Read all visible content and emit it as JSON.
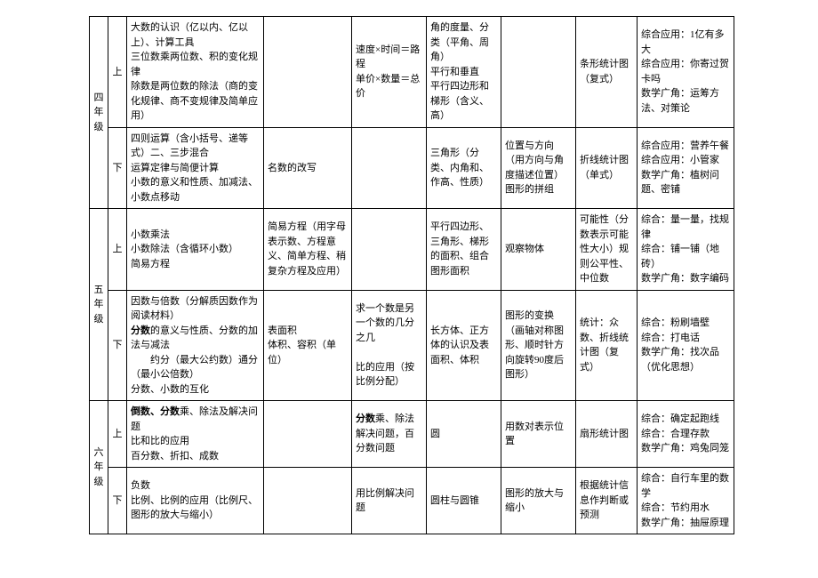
{
  "rows": [
    {
      "grade": "四年级",
      "gradeRowspan": 2,
      "term": "上",
      "c3": "大数的认识（亿以内、亿以上）、计算工具\n三位数乘两位数、积的变化规律\n除数是两位数的除法（商的变化规律、商不变规律及简单应用）",
      "c4": "",
      "c5": "速度×时间＝路程\n单价×数量＝总价",
      "c6": "角的度量、分类（平角、周角）\n平行和垂直\n平行四边形和梯形（含义、高）",
      "c7": "",
      "c8": "条形统计图（复式）",
      "c9": "综合应用：1亿有多大\n综合应用：你寄过贺卡吗\n数学广角：运筹方法、对策论"
    },
    {
      "term": "下",
      "c3": "四则运算（含小括号、递等式）二、三步混合\n运算定律与简便计算\n小数的意义和性质、加减法、小数点移动",
      "c4": "名数的改写",
      "c5": "",
      "c6": "三角形（分类、内角和、作高、性质）",
      "c7": "位置与方向（用方向与角度描述位置）\n图形的拼组",
      "c8": "折线统计图（单式）",
      "c9": "综合应用：营养午餐\n综合应用：小管家\n数学广角：植树问题、密铺"
    },
    {
      "grade": "五年级",
      "gradeRowspan": 2,
      "term": "上",
      "c3": "小数乘法\n小数除法（含循环小数）\n简易方程",
      "c4": "简易方程（用字母表示数、方程意义、简单方程、稍复杂方程及应用）",
      "c5": "",
      "c6": "平行四边形、三角形、梯形的面积、组合图形面积",
      "c7": "观察物体",
      "c8": "可能性（分数表示可能性大小）规则公平性、中位数",
      "c9": "综合：量一量，找规律\n综合：铺一铺（地砖）\n数学广角：数字编码"
    },
    {
      "term": "下",
      "c3": "因数与倍数（分解质因数作为阅读材料）\n<b>分数</b>的意义与性质、分数的加法与减法\n　　约分（最大公约数）通分（最小公倍数）\n分数、小数的互化",
      "c4": "表面积\n体积、容积（单位）",
      "c5": "求一个数是另一个数的几分之几\n\n比的应用（按比例分配）",
      "c6": "长方体、正方体的认识及表面积、体积",
      "c7": "图形的变换（画轴对称图形、顺时针方向旋转90度后图形）",
      "c8": "统计：众数、折线统计图（复式）",
      "c9": "综合：粉刷墙壁\n综合：打电话\n数学广角：找次品（优化思想）"
    },
    {
      "grade": "六年级",
      "gradeRowspan": 2,
      "term": "上",
      "c3": "<b>倒数、分数</b>乘、除法及解决问题\n比和比的应用\n百分数、折扣、成数",
      "c4": "",
      "c5": "<b>分数</b>乘、除法解决问题，百分数问题",
      "c6": "圆",
      "c7": "用数对表示位置",
      "c8": "扇形统计图",
      "c9": "综合：确定起跑线\n综合：合理存款\n数学广角：鸡兔同笼"
    },
    {
      "term": "下",
      "c3": "负数\n比例、比例的应用（比例尺、图形的放大与缩小）",
      "c4": "",
      "c5": "用比例解决问题",
      "c6": "圆柱与圆锥",
      "c7": "图形的放大与缩小",
      "c8": "根据统计信息作判断或预测",
      "c9": "综合：自行车里的数学\n综合：节约用水\n数学广角：抽屉原理"
    }
  ]
}
